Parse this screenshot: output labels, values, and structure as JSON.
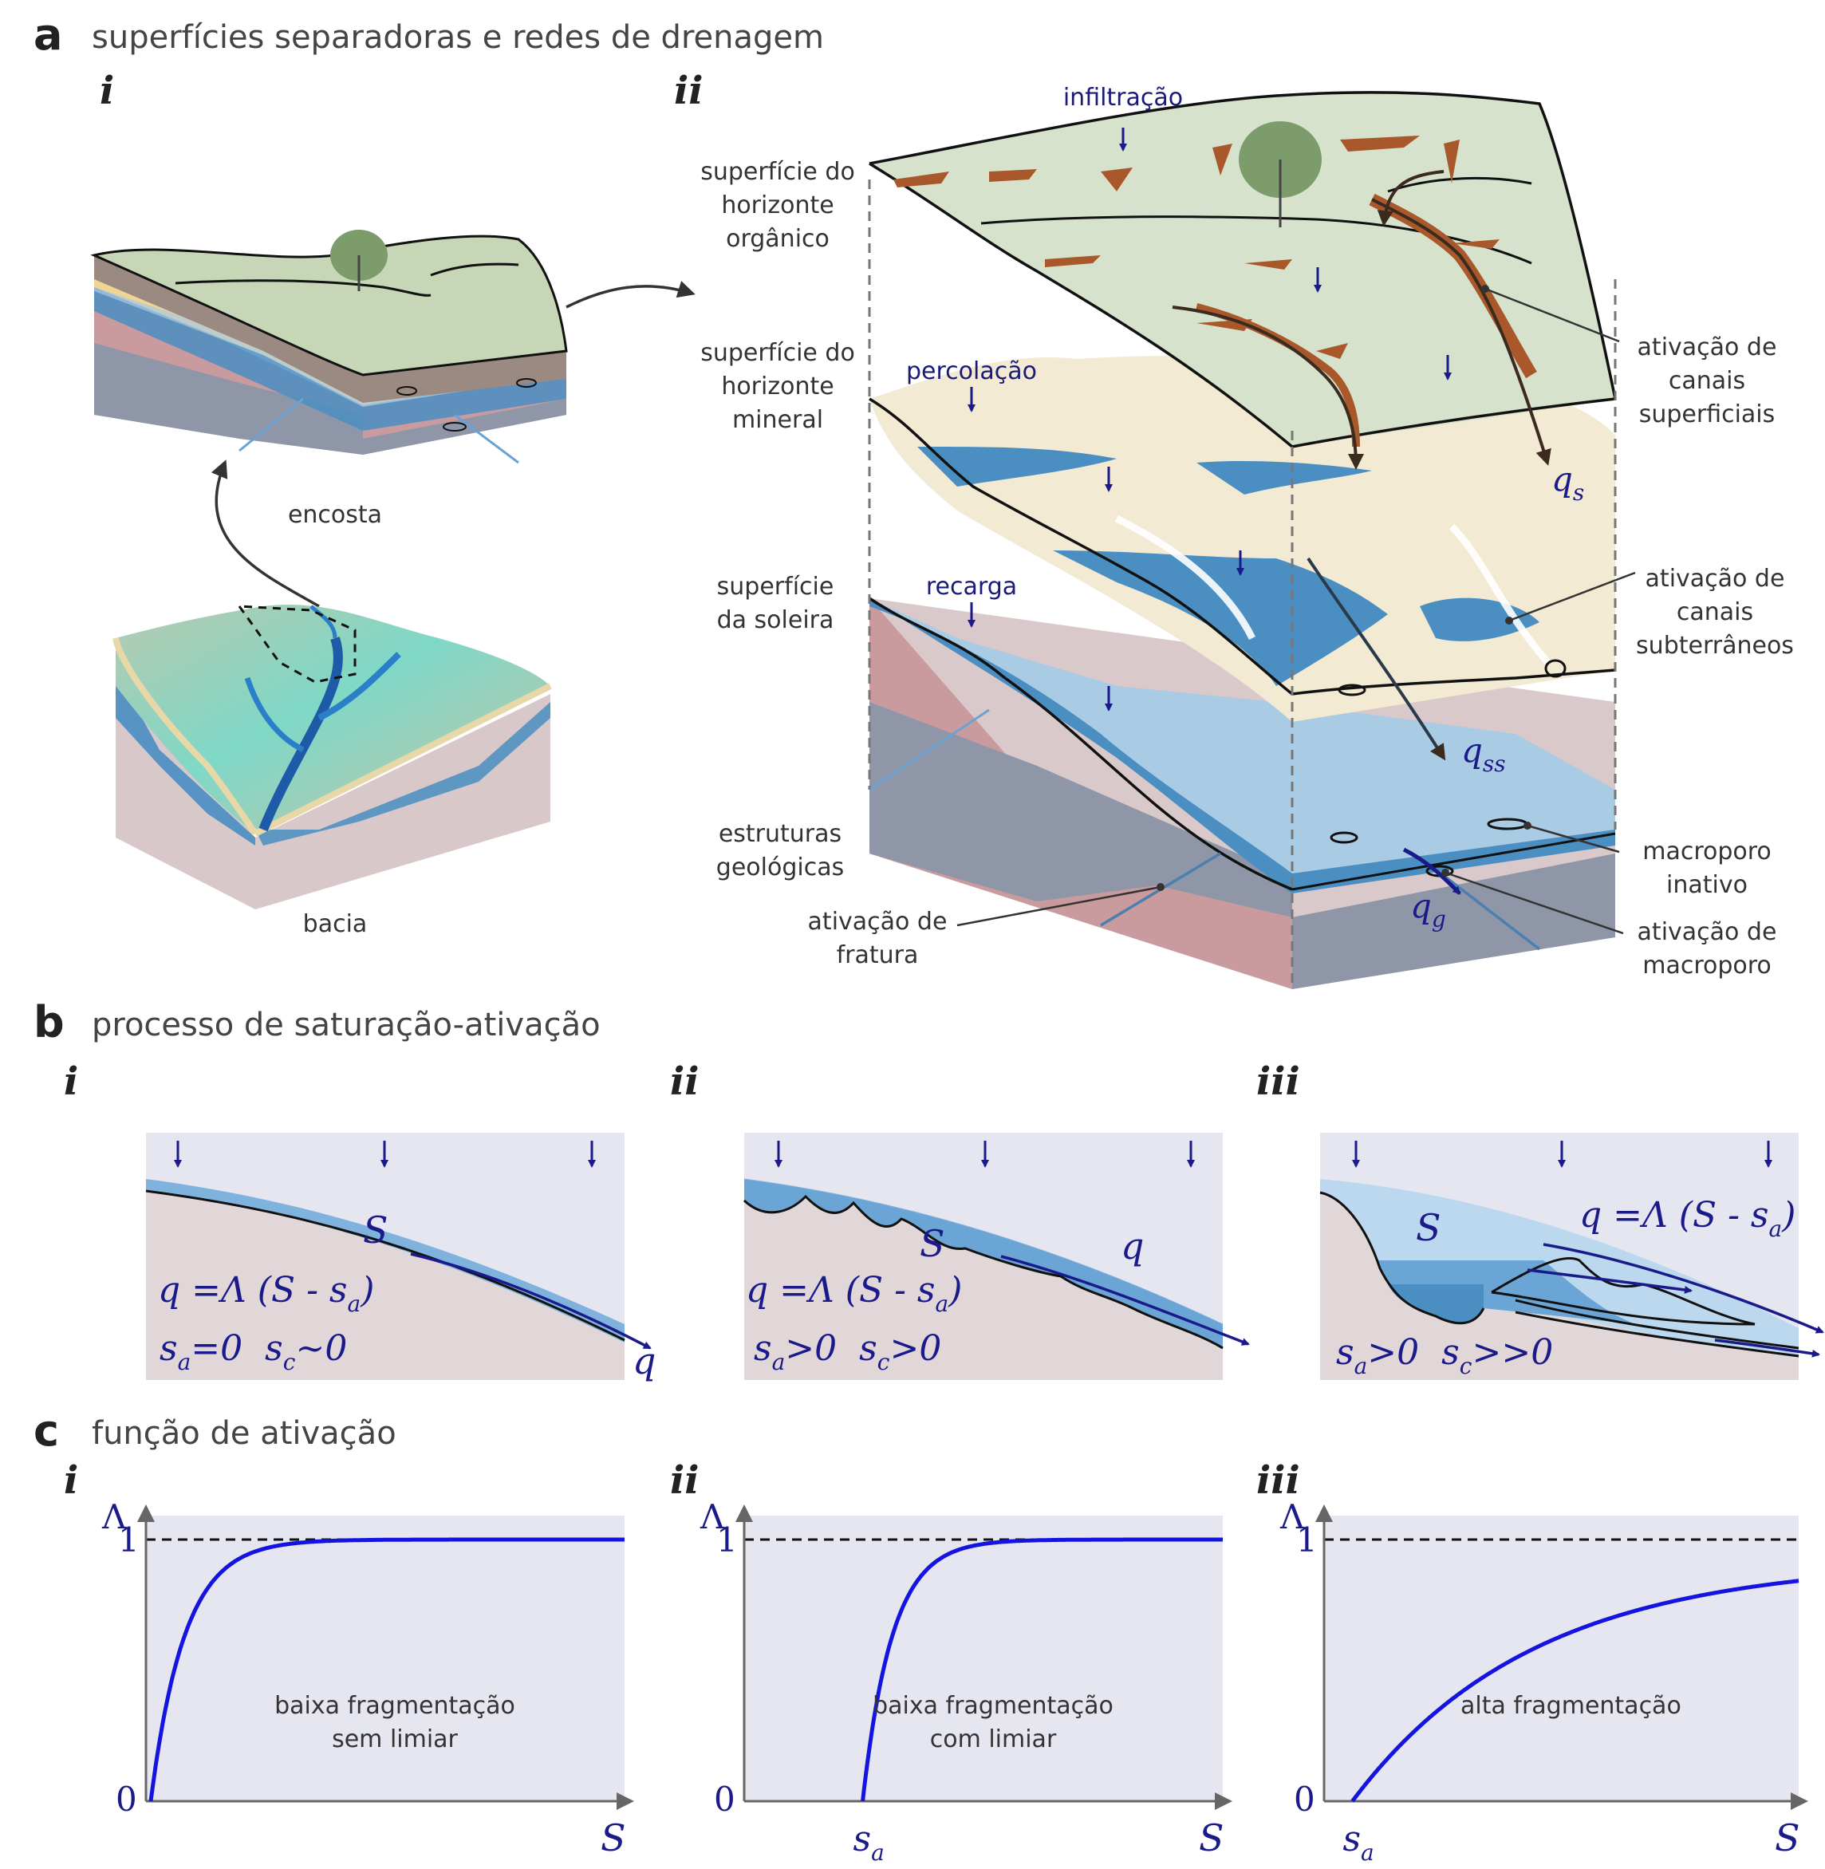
{
  "panel_a": {
    "letter": "a",
    "title": "superfícies separadoras e redes de drenagem",
    "sub_i": "i",
    "sub_ii": "ii",
    "label_hillslope": "encosta",
    "label_catchment": "bacia",
    "left_labels": {
      "organic": [
        "superfície do",
        "horizonte",
        "orgânico"
      ],
      "mineral": [
        "superfície do",
        "horizonte",
        "mineral"
      ],
      "bedrock": [
        "superfície",
        "da soleira"
      ],
      "geologic": [
        "estruturas",
        "geológicas"
      ],
      "fracture": [
        "ativação de",
        "fratura"
      ]
    },
    "right_labels": {
      "surface_channels": [
        "ativação de",
        "canais",
        "superficiais"
      ],
      "subsurface_channels": [
        "ativação de",
        "canais",
        "subterrâneos"
      ],
      "inactive_macropore": [
        "macroporo",
        "inativo"
      ],
      "macropore_activation": [
        "ativação de",
        "macroporo"
      ]
    },
    "flux_labels": {
      "infiltration": "infiltração",
      "percolation": "percolação",
      "recharge": "recarga",
      "qs": "q",
      "qs_sub": "s",
      "qss": "q",
      "qss_sub": "ss",
      "qg": "q",
      "qg_sub": "g"
    }
  },
  "panel_b": {
    "letter": "b",
    "title": "processo de saturação-ativação",
    "subpanels": [
      {
        "roman": "i",
        "S": "S",
        "q": "q",
        "eq_lhs": "q =Λ (S - s",
        "eq_sub": "a",
        "eq_rhs": ")",
        "cond1": "s",
        "cond1_sub": "a",
        "cond1_rel": "=0",
        "cond2": "s",
        "cond2_sub": "c",
        "cond2_rel": "~0"
      },
      {
        "roman": "ii",
        "S": "S",
        "q": "q",
        "eq_lhs": "q =Λ (S - s",
        "eq_sub": "a",
        "eq_rhs": ")",
        "cond1": "s",
        "cond1_sub": "a",
        "cond1_rel": ">0",
        "cond2": "s",
        "cond2_sub": "c",
        "cond2_rel": ">0"
      },
      {
        "roman": "iii",
        "S": "S",
        "eq_lhs": "q =Λ (S - s",
        "eq_sub": "a",
        "eq_rhs": ")",
        "cond1": "s",
        "cond1_sub": "a",
        "cond1_rel": ">0",
        "cond2": "s",
        "cond2_sub": "c",
        "cond2_rel": ">>0"
      }
    ]
  },
  "panel_c": {
    "letter": "c",
    "title": "função de ativação",
    "axis_y": "Λ",
    "axis_x": "S",
    "tick_one": "1",
    "tick_zero": "0",
    "threshold": "s",
    "threshold_sub": "a",
    "subpanels": [
      {
        "roman": "i",
        "label": [
          "baixa fragmentação",
          "sem limiar"
        ],
        "sa": null,
        "k": 14,
        "max": 1.0
      },
      {
        "roman": "ii",
        "label": [
          "baixa fragmentação",
          "com limiar"
        ],
        "sa": 0.24,
        "k": 16,
        "max": 1.0
      },
      {
        "roman": "iii",
        "label": [
          "alta fragmentação"
        ],
        "sa": 0.05,
        "k": 2.6,
        "max": 0.92
      }
    ]
  },
  "colors": {
    "organic": "#d6e2cc",
    "mineral": "#f3ead3",
    "bedrock": "#d9c9cb",
    "rock_front": "#c99b9e",
    "rock_slate": "#8e96a7",
    "water": "#4a8ec2",
    "water_light": "#a9cbe3",
    "channel_brown": "#a8582a",
    "flux_blue": "#1a1a8a",
    "panel_bg": "#e6e6f0",
    "curve_blue": "#1414e0"
  }
}
